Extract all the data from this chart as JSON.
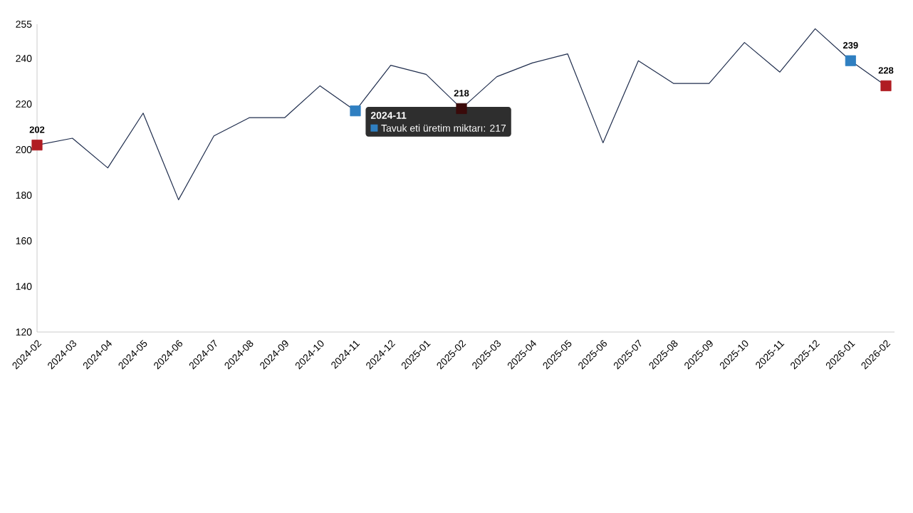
{
  "chart_data": {
    "type": "line",
    "categories": [
      "2024-02",
      "2024-03",
      "2024-04",
      "2024-05",
      "2024-06",
      "2024-07",
      "2024-08",
      "2024-09",
      "2024-10",
      "2024-11",
      "2024-12",
      "2025-01",
      "2025-02",
      "2025-03",
      "2025-04",
      "2025-05",
      "2025-06",
      "2025-07",
      "2025-08",
      "2025-09",
      "2025-10",
      "2025-11",
      "2025-12",
      "2026-01",
      "2026-02"
    ],
    "series": [
      {
        "color": "#1f2d4d",
        "values": [
          202,
          205,
          192,
          216,
          178,
          206,
          214,
          214,
          228,
          217,
          237,
          233,
          218,
          232,
          238,
          242,
          203,
          239,
          229,
          229,
          247,
          234,
          253,
          239,
          228
        ],
        "colors": [
          "#b01c22",
          null,
          null,
          null,
          null,
          null,
          null,
          null,
          null,
          "#2f7fc1",
          null,
          null,
          "#3a0a0a",
          null,
          null,
          null,
          null,
          null,
          null,
          null,
          null,
          null,
          null,
          "#2f7fc1",
          "#b01c22"
        ],
        "value_labels": [
          "202",
          null,
          null,
          null,
          null,
          null,
          null,
          null,
          null,
          null,
          null,
          null,
          "218",
          null,
          null,
          null,
          null,
          null,
          null,
          null,
          null,
          null,
          null,
          "239",
          "228"
        ]
      }
    ],
    "ylim": [
      120,
      255
    ],
    "yticks": [
      120,
      140,
      160,
      180,
      200,
      220,
      240,
      255
    ],
    "annotations": [
      {
        "text": "2024-11",
        "x": "2024-11",
        "y": 217
      },
      {
        "text": "Tavuk eti üretim miktarı: 217",
        "x": "2024-11",
        "y": 217
      }
    ]
  }
}
